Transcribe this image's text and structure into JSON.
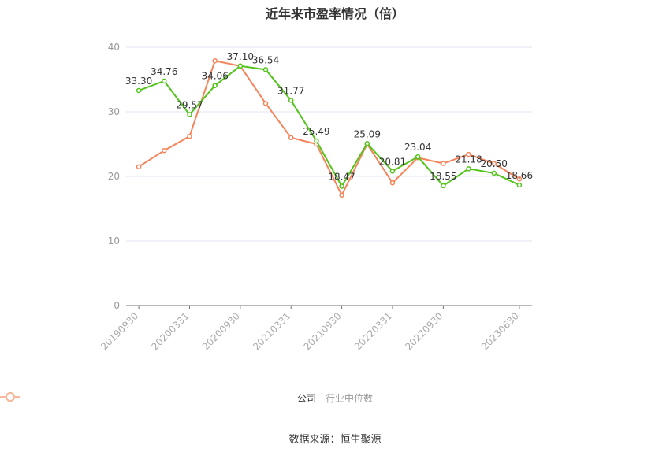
{
  "title": "近年来市盈率情况（倍）",
  "source": "数据来源：恒生聚源",
  "legend": [
    {
      "label": "公司",
      "color": "#52c41a"
    },
    {
      "label": "行业中位数",
      "color": "#f5845a"
    }
  ],
  "chart_data": {
    "type": "line",
    "title": "近年来市盈率情况（倍）",
    "xlabel": "",
    "ylabel": "",
    "ylim": [
      0,
      40
    ],
    "yticks": [
      0,
      10,
      20,
      30,
      40
    ],
    "grid": true,
    "legend_position": "bottom",
    "x_tick_labels": [
      "20190930",
      "20200331",
      "20200930",
      "20210331",
      "20210930",
      "20220331",
      "20220930",
      "20230630"
    ],
    "x": [
      "20190930",
      "20191231",
      "20200331",
      "20200630",
      "20200930",
      "20201231",
      "20210331",
      "20210630",
      "20210930",
      "20211231",
      "20220331",
      "20220630",
      "20220930",
      "20221231",
      "20230331",
      "20230630"
    ],
    "series": [
      {
        "name": "公司",
        "color": "#52c41a",
        "values": [
          33.3,
          34.76,
          29.57,
          34.06,
          37.1,
          36.54,
          31.77,
          25.49,
          18.47,
          25.09,
          20.81,
          23.04,
          18.55,
          21.18,
          20.5,
          18.66
        ],
        "labels_shown": true
      },
      {
        "name": "行业中位数",
        "color": "#f5845a",
        "values": [
          21.5,
          24.0,
          26.2,
          37.9,
          37.1,
          31.3,
          26.0,
          25.0,
          17.1,
          25.0,
          19.0,
          22.9,
          22.0,
          23.4,
          22.0,
          19.6
        ],
        "labels_shown": false
      }
    ],
    "annotations": [
      "33.30",
      "34.76",
      "29.57",
      "34.06",
      "37.10",
      "36.54",
      "31.77",
      "25.49",
      "18.47",
      "25.09",
      "20.81",
      "23.04",
      "18.55",
      "21.18",
      "20.50",
      "18.66"
    ]
  }
}
